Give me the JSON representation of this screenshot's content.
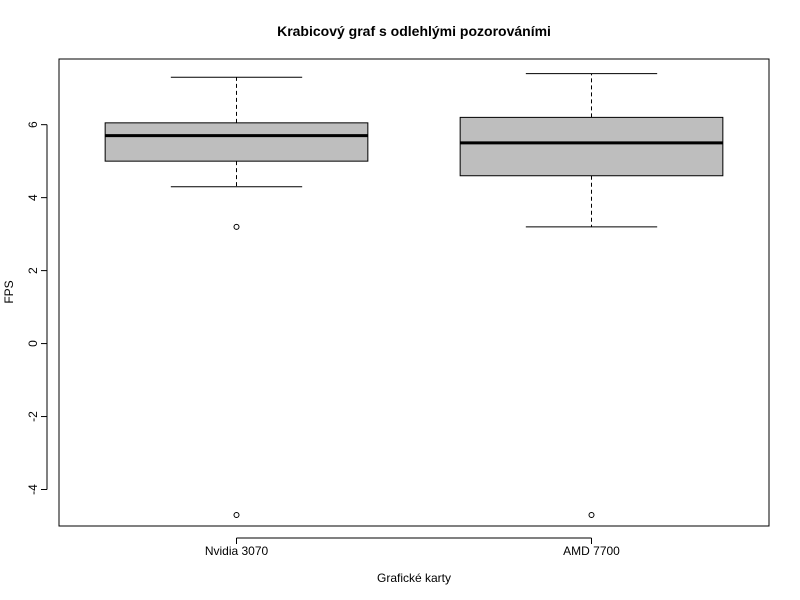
{
  "chart_data": {
    "type": "box",
    "title": "Krabicový graf s odlehlými pozorováními",
    "xlabel": "Grafické karty",
    "ylabel": "FPS",
    "ylim": [
      -5,
      7.8
    ],
    "y_ticks": [
      6,
      4,
      2,
      0,
      -2,
      -4
    ],
    "y_tick_labels": [
      "6",
      "4",
      "2",
      "0",
      "-2",
      "-4"
    ],
    "grid": false,
    "colors": {
      "box_fill": "#bebebe",
      "stroke": "#000000"
    },
    "categories": [
      "Nvidia 3070",
      "AMD 7700"
    ],
    "boxes": [
      {
        "name": "Nvidia 3070",
        "whisker_low": 4.3,
        "q1": 5.0,
        "median": 5.7,
        "q3": 6.05,
        "whisker_high": 7.3,
        "outliers": [
          3.2,
          -4.7
        ]
      },
      {
        "name": "AMD 7700",
        "whisker_low": 3.2,
        "q1": 4.6,
        "median": 5.5,
        "q3": 6.2,
        "whisker_high": 7.4,
        "outliers": [
          -4.7
        ]
      }
    ]
  }
}
